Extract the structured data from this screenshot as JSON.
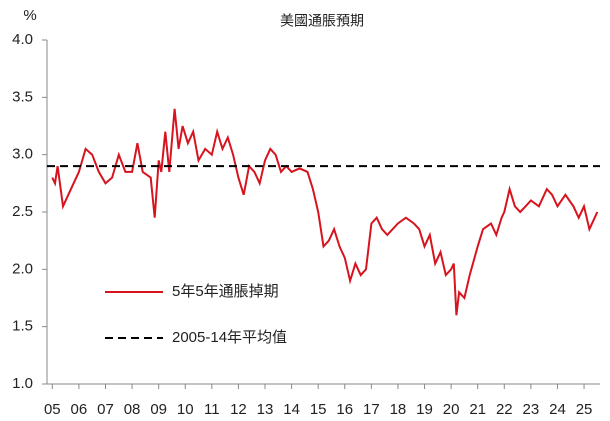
{
  "chart_data": {
    "type": "line",
    "title": "美國通脹預期",
    "y_label": "%",
    "xlim": [
      4.8,
      25.6
    ],
    "xticks": [
      {
        "value": 5,
        "label": "05"
      },
      {
        "value": 6,
        "label": "06"
      },
      {
        "value": 7,
        "label": "07"
      },
      {
        "value": 8,
        "label": "08"
      },
      {
        "value": 9,
        "label": "09"
      },
      {
        "value": 10,
        "label": "10"
      },
      {
        "value": 11,
        "label": "11"
      },
      {
        "value": 12,
        "label": "12"
      },
      {
        "value": 13,
        "label": "13"
      },
      {
        "value": 14,
        "label": "14"
      },
      {
        "value": 15,
        "label": "15"
      },
      {
        "value": 16,
        "label": "16"
      },
      {
        "value": 17,
        "label": "17"
      },
      {
        "value": 18,
        "label": "18"
      },
      {
        "value": 19,
        "label": "19"
      },
      {
        "value": 20,
        "label": "20"
      },
      {
        "value": 21,
        "label": "21"
      },
      {
        "value": 22,
        "label": "22"
      },
      {
        "value": 23,
        "label": "23"
      },
      {
        "value": 24,
        "label": "24"
      },
      {
        "value": 25,
        "label": "25"
      }
    ],
    "ylim": [
      1,
      4
    ],
    "yticks": [
      {
        "value": 1,
        "label": "1.0"
      },
      {
        "value": 1.5,
        "label": "1.5"
      },
      {
        "value": 2,
        "label": "2.0"
      },
      {
        "value": 2.5,
        "label": "2.5"
      },
      {
        "value": 3,
        "label": "3.0"
      },
      {
        "value": 3.5,
        "label": "3.5"
      },
      {
        "value": 4,
        "label": "4.0"
      }
    ],
    "series": [
      {
        "name": "5年5年通脹掉期",
        "color": "#d7141e",
        "dash": false,
        "x": [
          5.0,
          5.1,
          5.2,
          5.4,
          5.6,
          5.8,
          6.0,
          6.25,
          6.5,
          6.75,
          7.0,
          7.25,
          7.5,
          7.75,
          8.0,
          8.2,
          8.4,
          8.7,
          8.85,
          9.0,
          9.1,
          9.25,
          9.4,
          9.6,
          9.75,
          9.9,
          10.1,
          10.3,
          10.5,
          10.75,
          11.0,
          11.2,
          11.4,
          11.6,
          11.8,
          12.0,
          12.2,
          12.4,
          12.6,
          12.8,
          13.0,
          13.2,
          13.4,
          13.6,
          13.8,
          14.0,
          14.3,
          14.6,
          14.8,
          15.0,
          15.2,
          15.4,
          15.6,
          15.8,
          16.0,
          16.2,
          16.4,
          16.6,
          16.8,
          17.0,
          17.2,
          17.4,
          17.6,
          17.8,
          18.0,
          18.3,
          18.6,
          18.8,
          19.0,
          19.2,
          19.4,
          19.6,
          19.8,
          20.0,
          20.1,
          20.2,
          20.3,
          20.5,
          20.7,
          21.0,
          21.2,
          21.5,
          21.7,
          21.9,
          22.0,
          22.2,
          22.4,
          22.6,
          22.8,
          23.0,
          23.3,
          23.6,
          23.8,
          24.0,
          24.3,
          24.6,
          24.8,
          25.0,
          25.2,
          25.4,
          25.5
        ],
        "values": [
          2.8,
          2.75,
          2.9,
          2.55,
          2.65,
          2.75,
          2.85,
          3.05,
          3.0,
          2.85,
          2.75,
          2.8,
          3.0,
          2.85,
          2.85,
          3.1,
          2.85,
          2.8,
          2.45,
          2.95,
          2.85,
          3.2,
          2.85,
          3.4,
          3.05,
          3.25,
          3.1,
          3.2,
          2.95,
          3.05,
          3.0,
          3.2,
          3.05,
          3.15,
          3.0,
          2.8,
          2.65,
          2.9,
          2.85,
          2.75,
          2.95,
          3.05,
          3.0,
          2.85,
          2.9,
          2.85,
          2.88,
          2.85,
          2.7,
          2.5,
          2.2,
          2.25,
          2.35,
          2.2,
          2.1,
          1.9,
          2.05,
          1.95,
          2.0,
          2.4,
          2.45,
          2.35,
          2.3,
          2.35,
          2.4,
          2.45,
          2.4,
          2.35,
          2.2,
          2.3,
          2.05,
          2.15,
          1.95,
          2.0,
          2.05,
          1.6,
          1.8,
          1.75,
          1.95,
          2.2,
          2.35,
          2.4,
          2.3,
          2.45,
          2.5,
          2.7,
          2.55,
          2.5,
          2.55,
          2.6,
          2.55,
          2.7,
          2.65,
          2.55,
          2.65,
          2.55,
          2.45,
          2.55,
          2.35,
          2.45,
          2.5
        ]
      },
      {
        "name": "2005-14年平均值",
        "color": "#000000",
        "dash": true,
        "x": [
          4.8,
          25.6
        ],
        "values": [
          2.9,
          2.9
        ]
      }
    ]
  }
}
